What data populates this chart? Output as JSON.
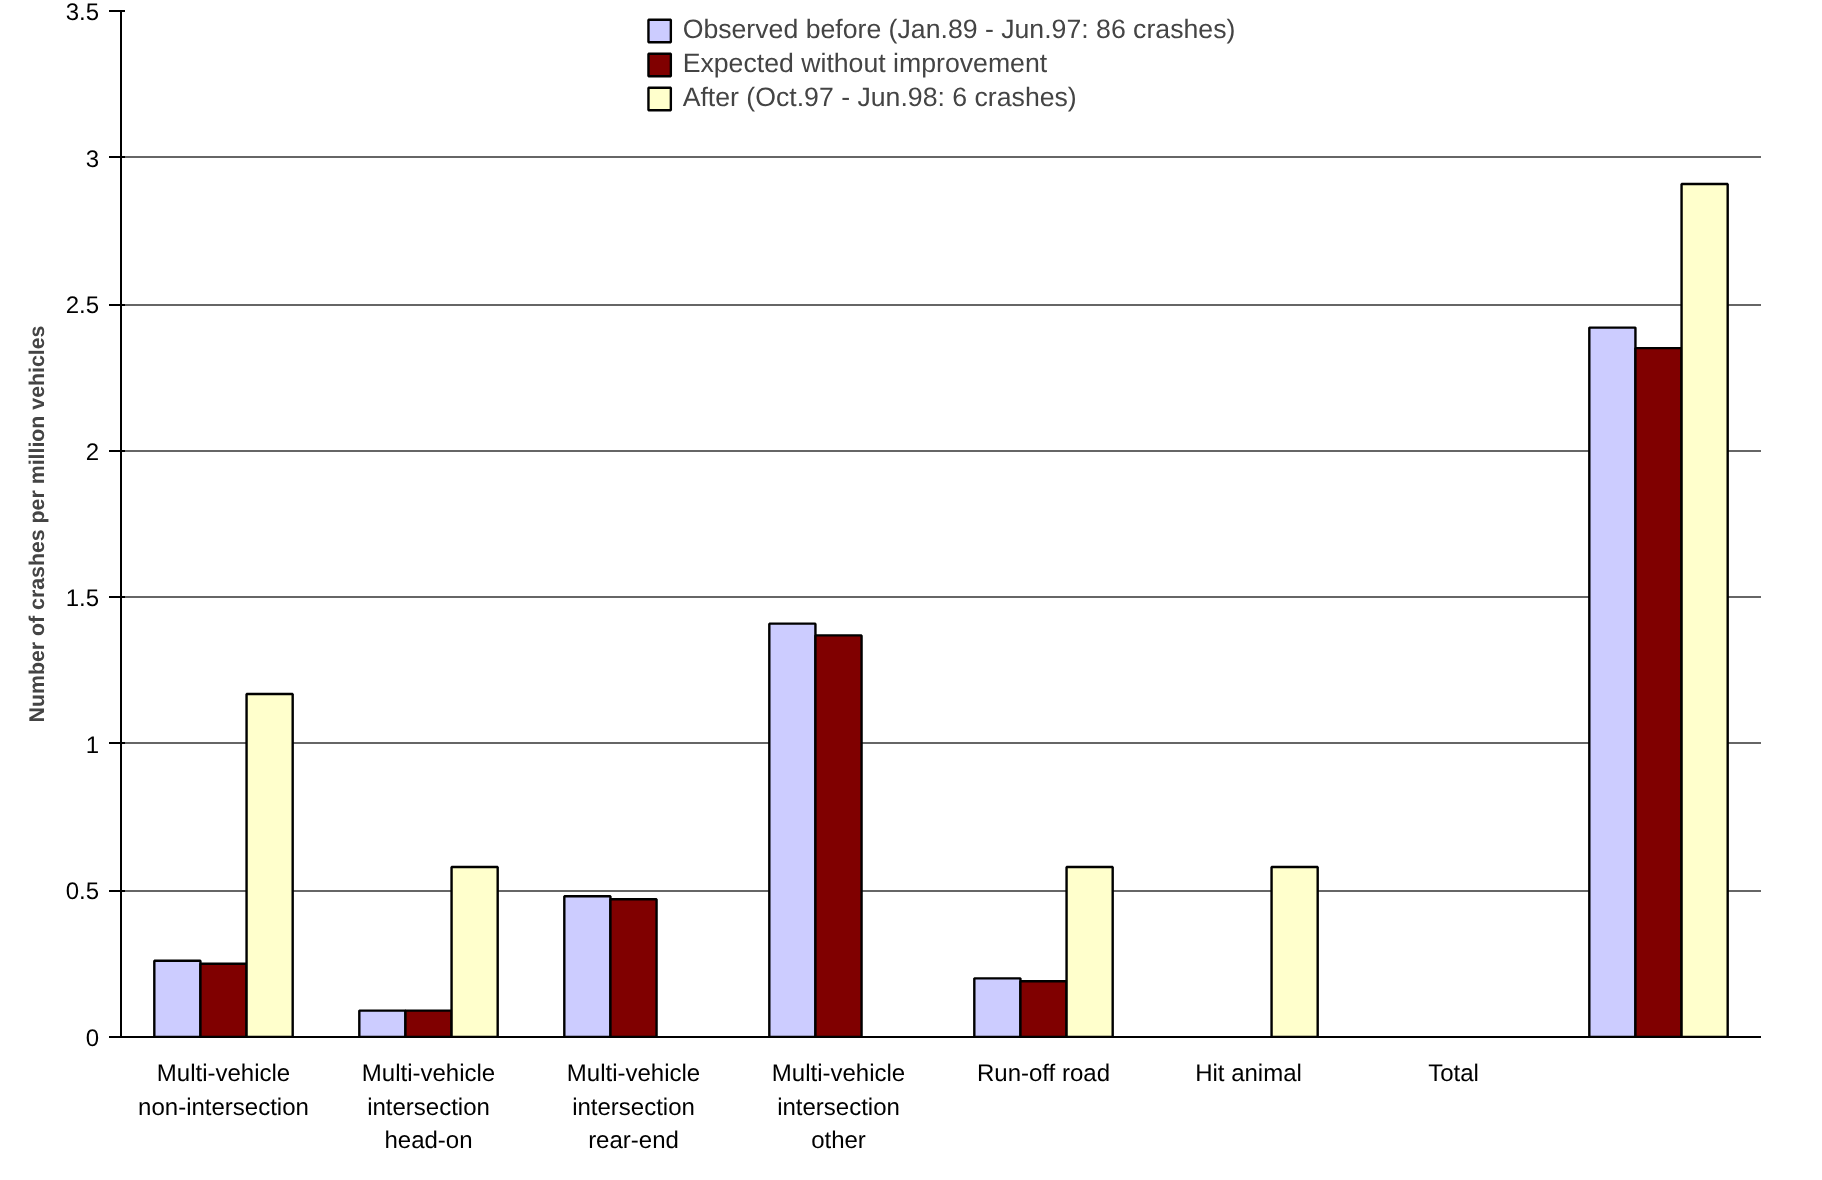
{
  "chart_data": {
    "type": "bar",
    "ylabel": "Number of crashes per million vehicles",
    "categories": [
      "Multi-vehicle\nnon-intersection",
      "Multi-vehicle\nintersection\nhead-on",
      "Multi-vehicle\nintersection\nrear-end",
      "Multi-vehicle\nintersection\nother",
      "Run-off road",
      "Hit animal",
      "Total",
      null
    ],
    "series": [
      {
        "name": "Observed before (Jan.89 - Jun.97: 86 crashes)",
        "color": "#ccccff",
        "values": [
          0.26,
          0.09,
          0.48,
          1.41,
          0.2,
          null,
          null,
          2.42
        ]
      },
      {
        "name": "Expected without improvement",
        "color": "#800000",
        "values": [
          0.25,
          0.09,
          0.47,
          1.37,
          0.19,
          null,
          null,
          2.35
        ]
      },
      {
        "name": "After (Oct.97 - Jun.98: 6 crashes)",
        "color": "#ffffcc",
        "values": [
          1.17,
          0.58,
          null,
          null,
          0.58,
          0.58,
          null,
          2.91
        ]
      }
    ],
    "ylim": [
      0,
      3.5
    ],
    "yticks": [
      0,
      0.5,
      1,
      1.5,
      2,
      2.5,
      3,
      3.5
    ],
    "grid": "y",
    "legend": "top"
  }
}
